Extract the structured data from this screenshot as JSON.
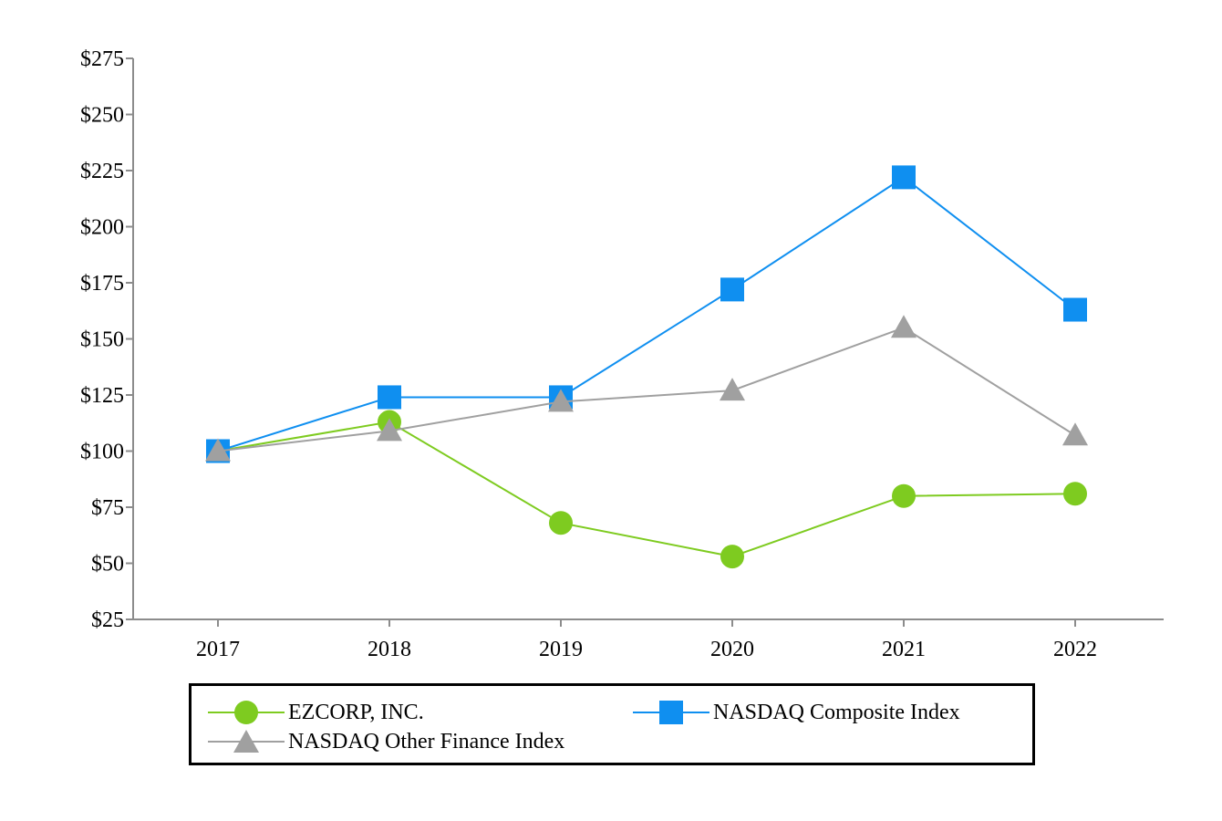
{
  "chart_data": {
    "type": "line",
    "title": "",
    "xlabel": "",
    "ylabel": "",
    "categories": [
      "2017",
      "2018",
      "2019",
      "2020",
      "2021",
      "2022"
    ],
    "ylim": [
      25,
      275
    ],
    "yticks": [
      25,
      50,
      75,
      100,
      125,
      150,
      175,
      200,
      225,
      250,
      275
    ],
    "ytick_labels": [
      "$25",
      "$50",
      "$75",
      "$100",
      "$125",
      "$150",
      "$175",
      "$200",
      "$225",
      "$250",
      "$275"
    ],
    "grid": false,
    "legend_position": "bottom",
    "series": [
      {
        "name": "EZCORP, INC.",
        "marker": "circle",
        "color": "#7ecb20",
        "values": [
          100,
          113,
          68,
          53,
          80,
          81
        ]
      },
      {
        "name": "NASDAQ Composite Index",
        "marker": "square",
        "color": "#0f8ff0",
        "values": [
          100,
          124,
          124,
          172,
          222,
          163
        ]
      },
      {
        "name": "NASDAQ Other Finance Index",
        "marker": "triangle",
        "color": "#a0a0a0",
        "values": [
          100,
          109,
          122,
          127,
          155,
          107
        ]
      }
    ]
  },
  "legend": {
    "items": [
      {
        "label": "EZCORP, INC."
      },
      {
        "label": "NASDAQ Composite Index"
      },
      {
        "label": "NASDAQ Other Finance Index"
      }
    ]
  }
}
